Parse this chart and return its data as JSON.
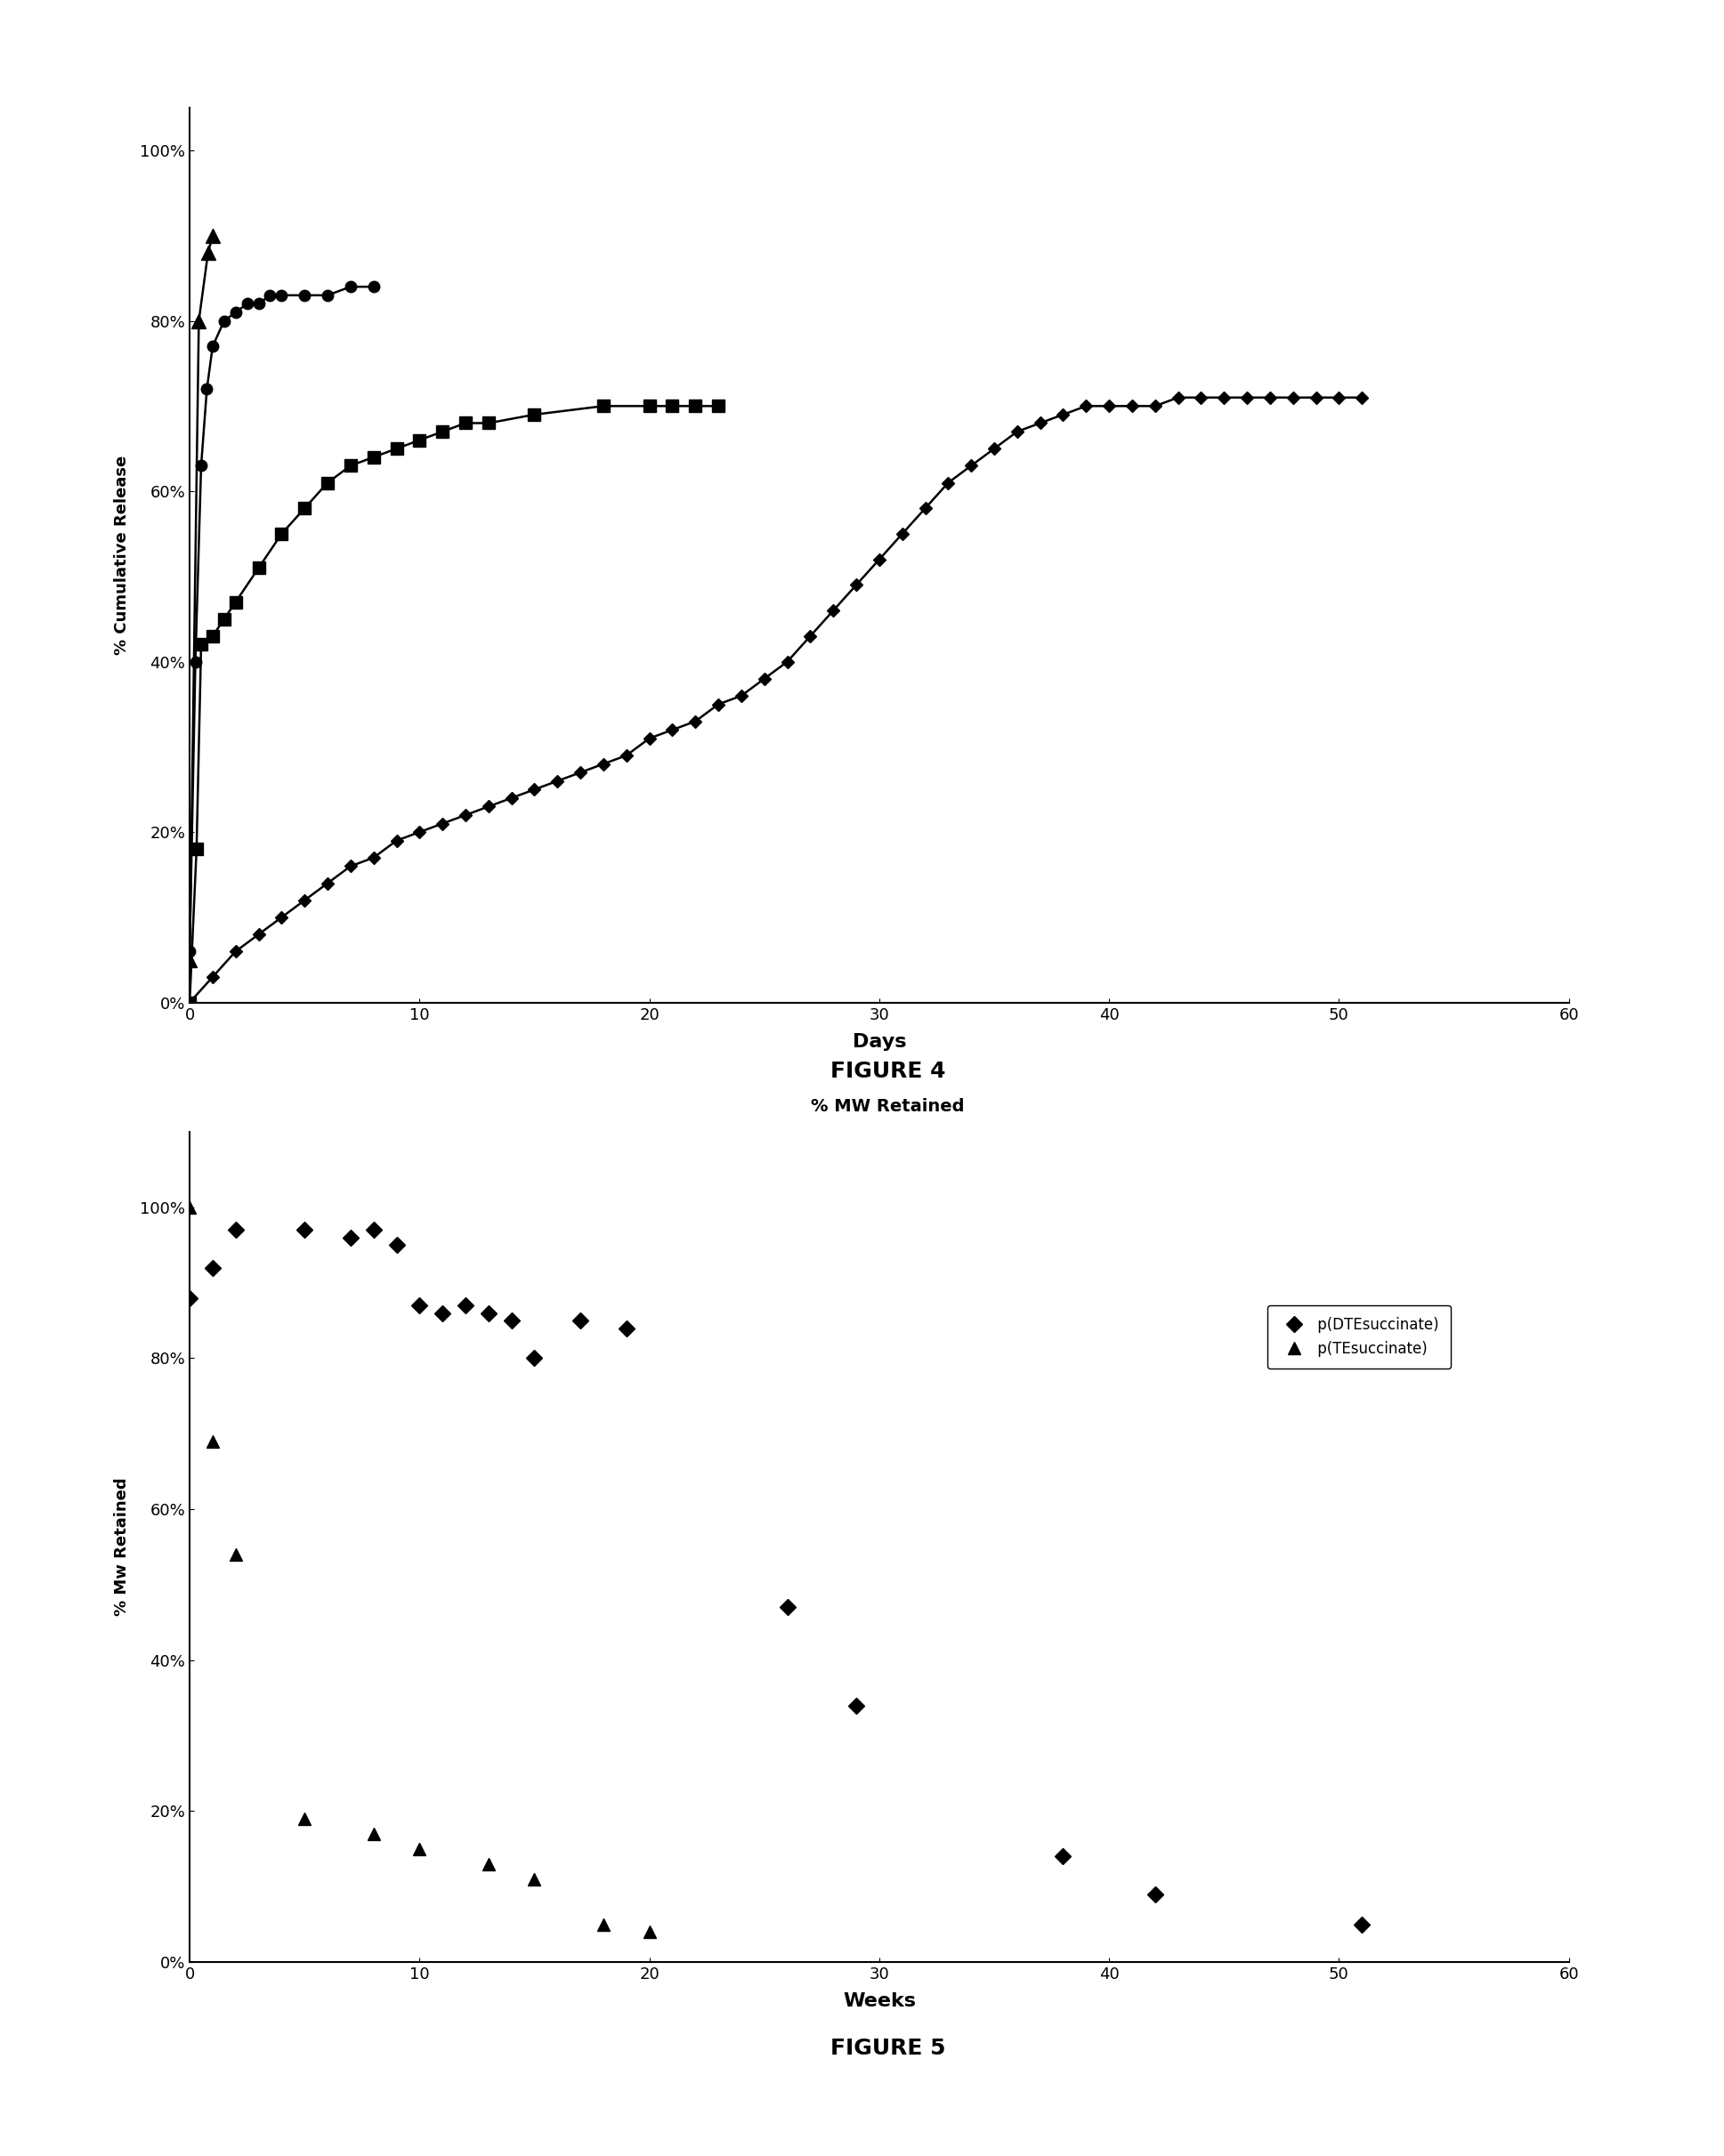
{
  "fig4": {
    "xlabel": "Days",
    "ylabel": "% Cumulative Release",
    "xlim": [
      0,
      60
    ],
    "ylim": [
      0,
      1.05
    ],
    "yticks": [
      0,
      0.2,
      0.4,
      0.6,
      0.8,
      1.0
    ],
    "xticks": [
      0,
      10,
      20,
      30,
      40,
      50,
      60
    ],
    "series": [
      {
        "label": "triangle_fast",
        "marker": "^",
        "x": [
          0,
          0.4,
          0.8,
          1.0
        ],
        "y": [
          0.05,
          0.8,
          0.88,
          0.9
        ]
      },
      {
        "label": "circle_fast",
        "marker": "o",
        "x": [
          0,
          0.25,
          0.5,
          0.75,
          1.0,
          1.5,
          2.0,
          2.5,
          3.0,
          3.5,
          4.0,
          5.0,
          6.0,
          7.0,
          8.0
        ],
        "y": [
          0.06,
          0.4,
          0.63,
          0.72,
          0.77,
          0.8,
          0.81,
          0.82,
          0.82,
          0.83,
          0.83,
          0.83,
          0.83,
          0.84,
          0.84
        ]
      },
      {
        "label": "square_medium",
        "marker": "s",
        "x": [
          0,
          0.3,
          0.5,
          1.0,
          1.5,
          2.0,
          3.0,
          4.0,
          5.0,
          6.0,
          7.0,
          8.0,
          9.0,
          10.0,
          11.0,
          12.0,
          13.0,
          15.0,
          18.0,
          20.0,
          21.0,
          22.0,
          23.0
        ],
        "y": [
          0.0,
          0.18,
          0.42,
          0.43,
          0.45,
          0.47,
          0.51,
          0.55,
          0.58,
          0.61,
          0.63,
          0.64,
          0.65,
          0.66,
          0.67,
          0.68,
          0.68,
          0.69,
          0.7,
          0.7,
          0.7,
          0.7,
          0.7
        ]
      },
      {
        "label": "diamond_slow",
        "marker": "D",
        "x": [
          0,
          1,
          2,
          3,
          4,
          5,
          6,
          7,
          8,
          9,
          10,
          11,
          12,
          13,
          14,
          15,
          16,
          17,
          18,
          19,
          20,
          21,
          22,
          23,
          24,
          25,
          26,
          27,
          28,
          29,
          30,
          31,
          32,
          33,
          34,
          35,
          36,
          37,
          38,
          39,
          40,
          41,
          42,
          43,
          44,
          45,
          46,
          47,
          48,
          49,
          50,
          51
        ],
        "y": [
          0.0,
          0.03,
          0.06,
          0.08,
          0.1,
          0.12,
          0.14,
          0.16,
          0.17,
          0.19,
          0.2,
          0.21,
          0.22,
          0.23,
          0.24,
          0.25,
          0.26,
          0.27,
          0.28,
          0.29,
          0.31,
          0.32,
          0.33,
          0.35,
          0.36,
          0.38,
          0.4,
          0.43,
          0.46,
          0.49,
          0.52,
          0.55,
          0.58,
          0.61,
          0.63,
          0.65,
          0.67,
          0.68,
          0.69,
          0.7,
          0.7,
          0.7,
          0.7,
          0.71,
          0.71,
          0.71,
          0.71,
          0.71,
          0.71,
          0.71,
          0.71,
          0.71
        ]
      }
    ],
    "figure_label": "FIGURE 4"
  },
  "fig5": {
    "title": "% MW Retained",
    "xlabel": "Weeks",
    "ylabel": "% Mw Retained",
    "xlim": [
      0,
      60
    ],
    "ylim": [
      0,
      1.1
    ],
    "yticks": [
      0,
      0.2,
      0.4,
      0.6,
      0.8,
      1.0
    ],
    "xticks": [
      0,
      10,
      20,
      30,
      40,
      50,
      60
    ],
    "series": [
      {
        "label": "p(DTEsuccinate)",
        "marker": "D",
        "x": [
          0,
          1,
          2,
          5,
          7,
          8,
          9,
          10,
          11,
          12,
          13,
          14,
          15,
          17,
          19,
          26,
          29,
          38,
          42,
          51
        ],
        "y": [
          0.88,
          0.92,
          0.97,
          0.97,
          0.96,
          0.97,
          0.95,
          0.87,
          0.86,
          0.87,
          0.86,
          0.85,
          0.8,
          0.85,
          0.84,
          0.47,
          0.34,
          0.14,
          0.09,
          0.05
        ]
      },
      {
        "label": "p(TEsuccinate)",
        "marker": "^",
        "x": [
          0,
          1,
          2,
          5,
          8,
          10,
          13,
          15,
          18,
          20
        ],
        "y": [
          1.0,
          0.69,
          0.54,
          0.19,
          0.17,
          0.15,
          0.13,
          0.11,
          0.05,
          0.04
        ]
      }
    ],
    "figure_label": "FIGURE 5"
  }
}
